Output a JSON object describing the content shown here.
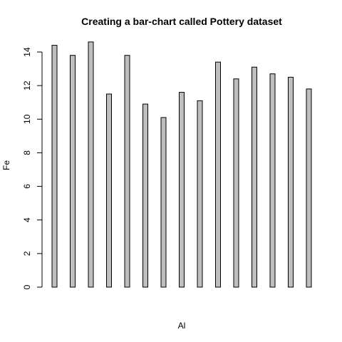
{
  "chart_data": {
    "type": "bar",
    "title": "Creating a bar-chart called Pottery dataset",
    "xlabel": "Al",
    "ylabel": "Fe",
    "ylim": [
      0,
      15
    ],
    "yticks": [
      "0",
      "2",
      "4",
      "6",
      "8",
      "10",
      "12",
      "14"
    ],
    "values": [
      14.4,
      13.8,
      14.6,
      11.5,
      13.8,
      10.9,
      10.1,
      11.6,
      11.1,
      13.4,
      12.4,
      13.1,
      12.7,
      12.5,
      11.8
    ],
    "bar_fill": "#bebebe",
    "bar_stroke": "#000000",
    "grid": false,
    "legend": "none"
  }
}
